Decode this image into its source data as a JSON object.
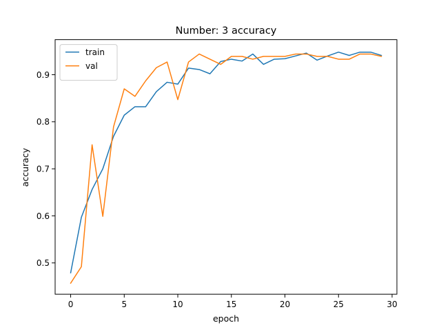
{
  "chart_data": {
    "type": "line",
    "title": "Number: 3 accuracy",
    "xlabel": "epoch",
    "ylabel": "accuracy",
    "xlim": [
      -1.45,
      30.45
    ],
    "ylim": [
      0.4335,
      0.9745
    ],
    "xticks": [
      0,
      5,
      10,
      15,
      20,
      25,
      30
    ],
    "yticks": [
      0.5,
      0.6,
      0.7,
      0.8,
      0.9
    ],
    "grid": false,
    "legend_position": "top-left",
    "x": [
      0,
      1,
      2,
      3,
      4,
      5,
      6,
      7,
      8,
      9,
      10,
      11,
      12,
      13,
      14,
      15,
      16,
      17,
      18,
      19,
      20,
      21,
      22,
      23,
      24,
      25,
      26,
      27,
      28,
      29
    ],
    "series": [
      {
        "name": "train",
        "color": "#1f77b4",
        "values": [
          0.479,
          0.597,
          0.656,
          0.7,
          0.769,
          0.814,
          0.832,
          0.832,
          0.864,
          0.884,
          0.88,
          0.914,
          0.911,
          0.902,
          0.928,
          0.933,
          0.929,
          0.944,
          0.922,
          0.933,
          0.934,
          0.94,
          0.946,
          0.931,
          0.94,
          0.948,
          0.941,
          0.948,
          0.948,
          0.941
        ]
      },
      {
        "name": "val",
        "color": "#ff7f0e",
        "values": [
          0.457,
          0.492,
          0.751,
          0.599,
          0.789,
          0.87,
          0.854,
          0.887,
          0.915,
          0.927,
          0.847,
          0.927,
          0.944,
          0.933,
          0.922,
          0.939,
          0.939,
          0.933,
          0.939,
          0.939,
          0.939,
          0.944,
          0.944,
          0.939,
          0.939,
          0.933,
          0.933,
          0.944,
          0.944,
          0.939
        ]
      }
    ]
  }
}
